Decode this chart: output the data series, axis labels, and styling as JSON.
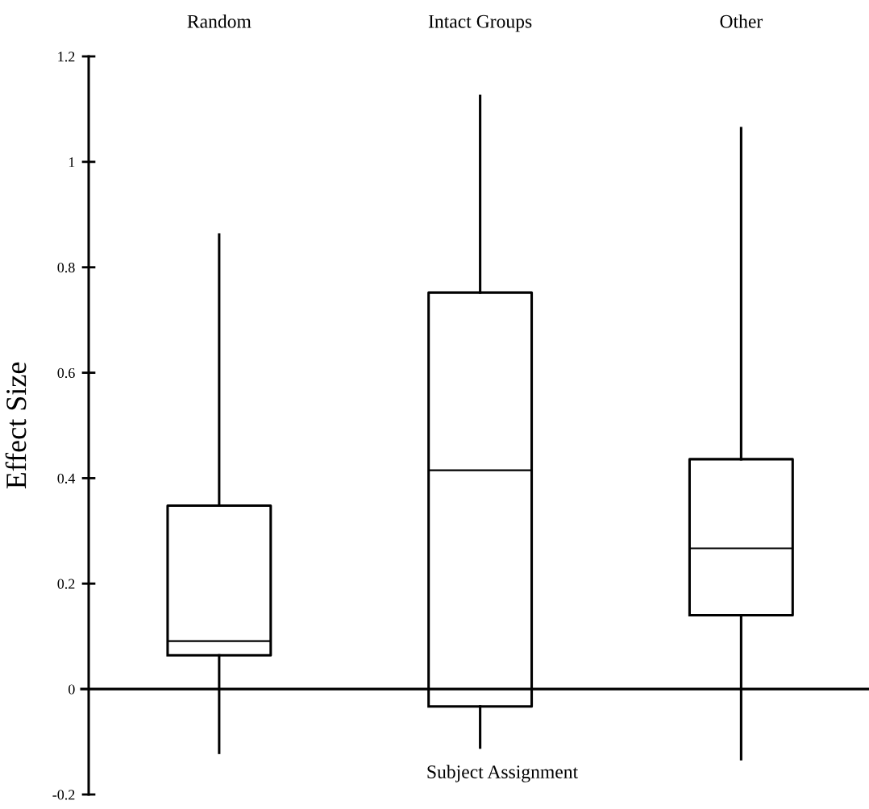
{
  "chart_data": {
    "type": "box",
    "xlabel": "Subject Assignment",
    "ylabel": "Effect Size",
    "categories": [
      "Random",
      "Intact Groups",
      "Other"
    ],
    "boxes": [
      {
        "low": -0.121,
        "q1": 0.064,
        "median": 0.091,
        "q3": 0.348,
        "high": 0.862
      },
      {
        "low": -0.111,
        "q1": -0.033,
        "median": 0.415,
        "q3": 0.752,
        "high": 1.125
      },
      {
        "low": -0.133,
        "q1": 0.14,
        "median": 0.267,
        "q3": 0.436,
        "high": 1.064
      }
    ],
    "ylim": [
      -0.2,
      1.2
    ],
    "yticks": [
      -0.2,
      0,
      0.2,
      0.4,
      0.6,
      0.8,
      1,
      1.2
    ],
    "ref_lines": [
      {
        "axis": "y",
        "value": 0,
        "color": "#000000",
        "line_style": "solid"
      }
    ],
    "grid": false,
    "legend": false
  }
}
